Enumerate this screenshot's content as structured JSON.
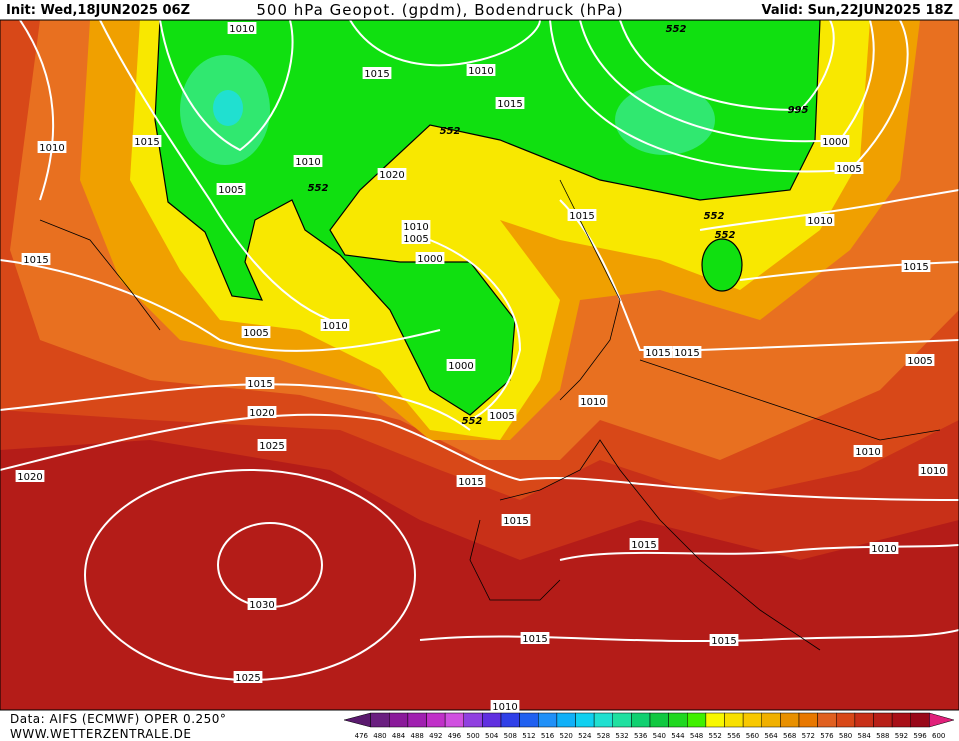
{
  "header": {
    "init": "Init: Wed,18JUN2025 06Z",
    "title": "500 hPa Geopot. (gpdm), Bodendruck (hPa)",
    "valid": "Valid: Sun,22JUN2025 18Z"
  },
  "footer": {
    "source": "Data: AIFS (ECMWF) OPER 0.250°",
    "website": "WWW.WETTERZENTRALE.DE"
  },
  "colorbar": {
    "values": [
      476,
      480,
      484,
      488,
      492,
      496,
      500,
      504,
      508,
      512,
      516,
      520,
      524,
      528,
      532,
      536,
      540,
      544,
      548,
      552,
      556,
      560,
      564,
      568,
      572,
      576,
      580,
      584,
      588,
      592,
      596,
      600
    ],
    "colors": [
      "#5a1a6e",
      "#6a1f80",
      "#8a1a9a",
      "#a020b0",
      "#c030c8",
      "#d050e0",
      "#9040e0",
      "#6030e0",
      "#3040e8",
      "#2060f0",
      "#2090f8",
      "#10b0f8",
      "#10d0f0",
      "#20e0d0",
      "#20e0a0",
      "#10d070",
      "#10c840",
      "#20d820",
      "#40f000",
      "#f8f800",
      "#f8e000",
      "#f8c800",
      "#f0b000",
      "#e89000",
      "#e87800",
      "#e06020",
      "#d84818",
      "#c83018",
      "#b82018",
      "#a81018",
      "#980818",
      "#e0207a"
    ]
  },
  "isobar_labels": [
    "1010",
    "1015",
    "1010",
    "1015",
    "552",
    "995",
    "1000",
    "1005",
    "1010",
    "1015",
    "552",
    "1010",
    "1020",
    "552",
    "1005",
    "1015",
    "552",
    "552",
    "1010",
    "1010",
    "1005",
    "1000",
    "1015",
    "1015",
    "1005",
    "1010",
    "1015",
    "1015",
    "1005",
    "1000",
    "1015",
    "1020",
    "1005",
    "552",
    "1010",
    "1025",
    "1010",
    "1010",
    "1020",
    "1015",
    "1015",
    "1015",
    "1010",
    "1030",
    "1015",
    "1015",
    "1025",
    "1010"
  ]
}
